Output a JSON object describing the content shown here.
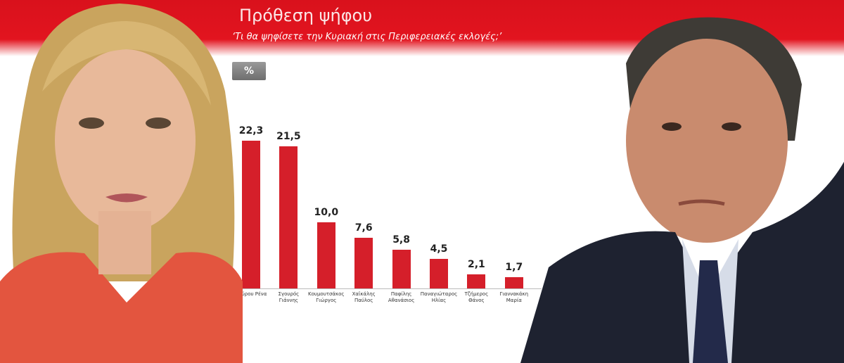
{
  "chart_data": {
    "type": "bar",
    "title": "Πρόθεση  ψήφου",
    "subtitle": "‘Τι θα ψηφίσετε την Κυριακή στις Περιφερειακές εκλογές;’",
    "unit": "%",
    "categories": [
      "Δούρου Ρένα",
      "Σγουρός Γιάννης",
      "Κουμουτσάκος Γιώργος",
      "Χαϊκάλης Παύλος",
      "Παφίλης Αθανάσιος",
      "Παναγιώταρος Ηλίας",
      "Τζήμερος Θάνος",
      "Γιαννακάκη Μαρία"
    ],
    "values": [
      22.3,
      21.5,
      10.0,
      7.6,
      5.8,
      4.5,
      2.1,
      1.7
    ],
    "value_labels": [
      "22,3",
      "21,5",
      "10,0",
      "7,6",
      "5,8",
      "4,5",
      "2,1",
      "1,7"
    ],
    "color": "#d51f2a"
  }
}
